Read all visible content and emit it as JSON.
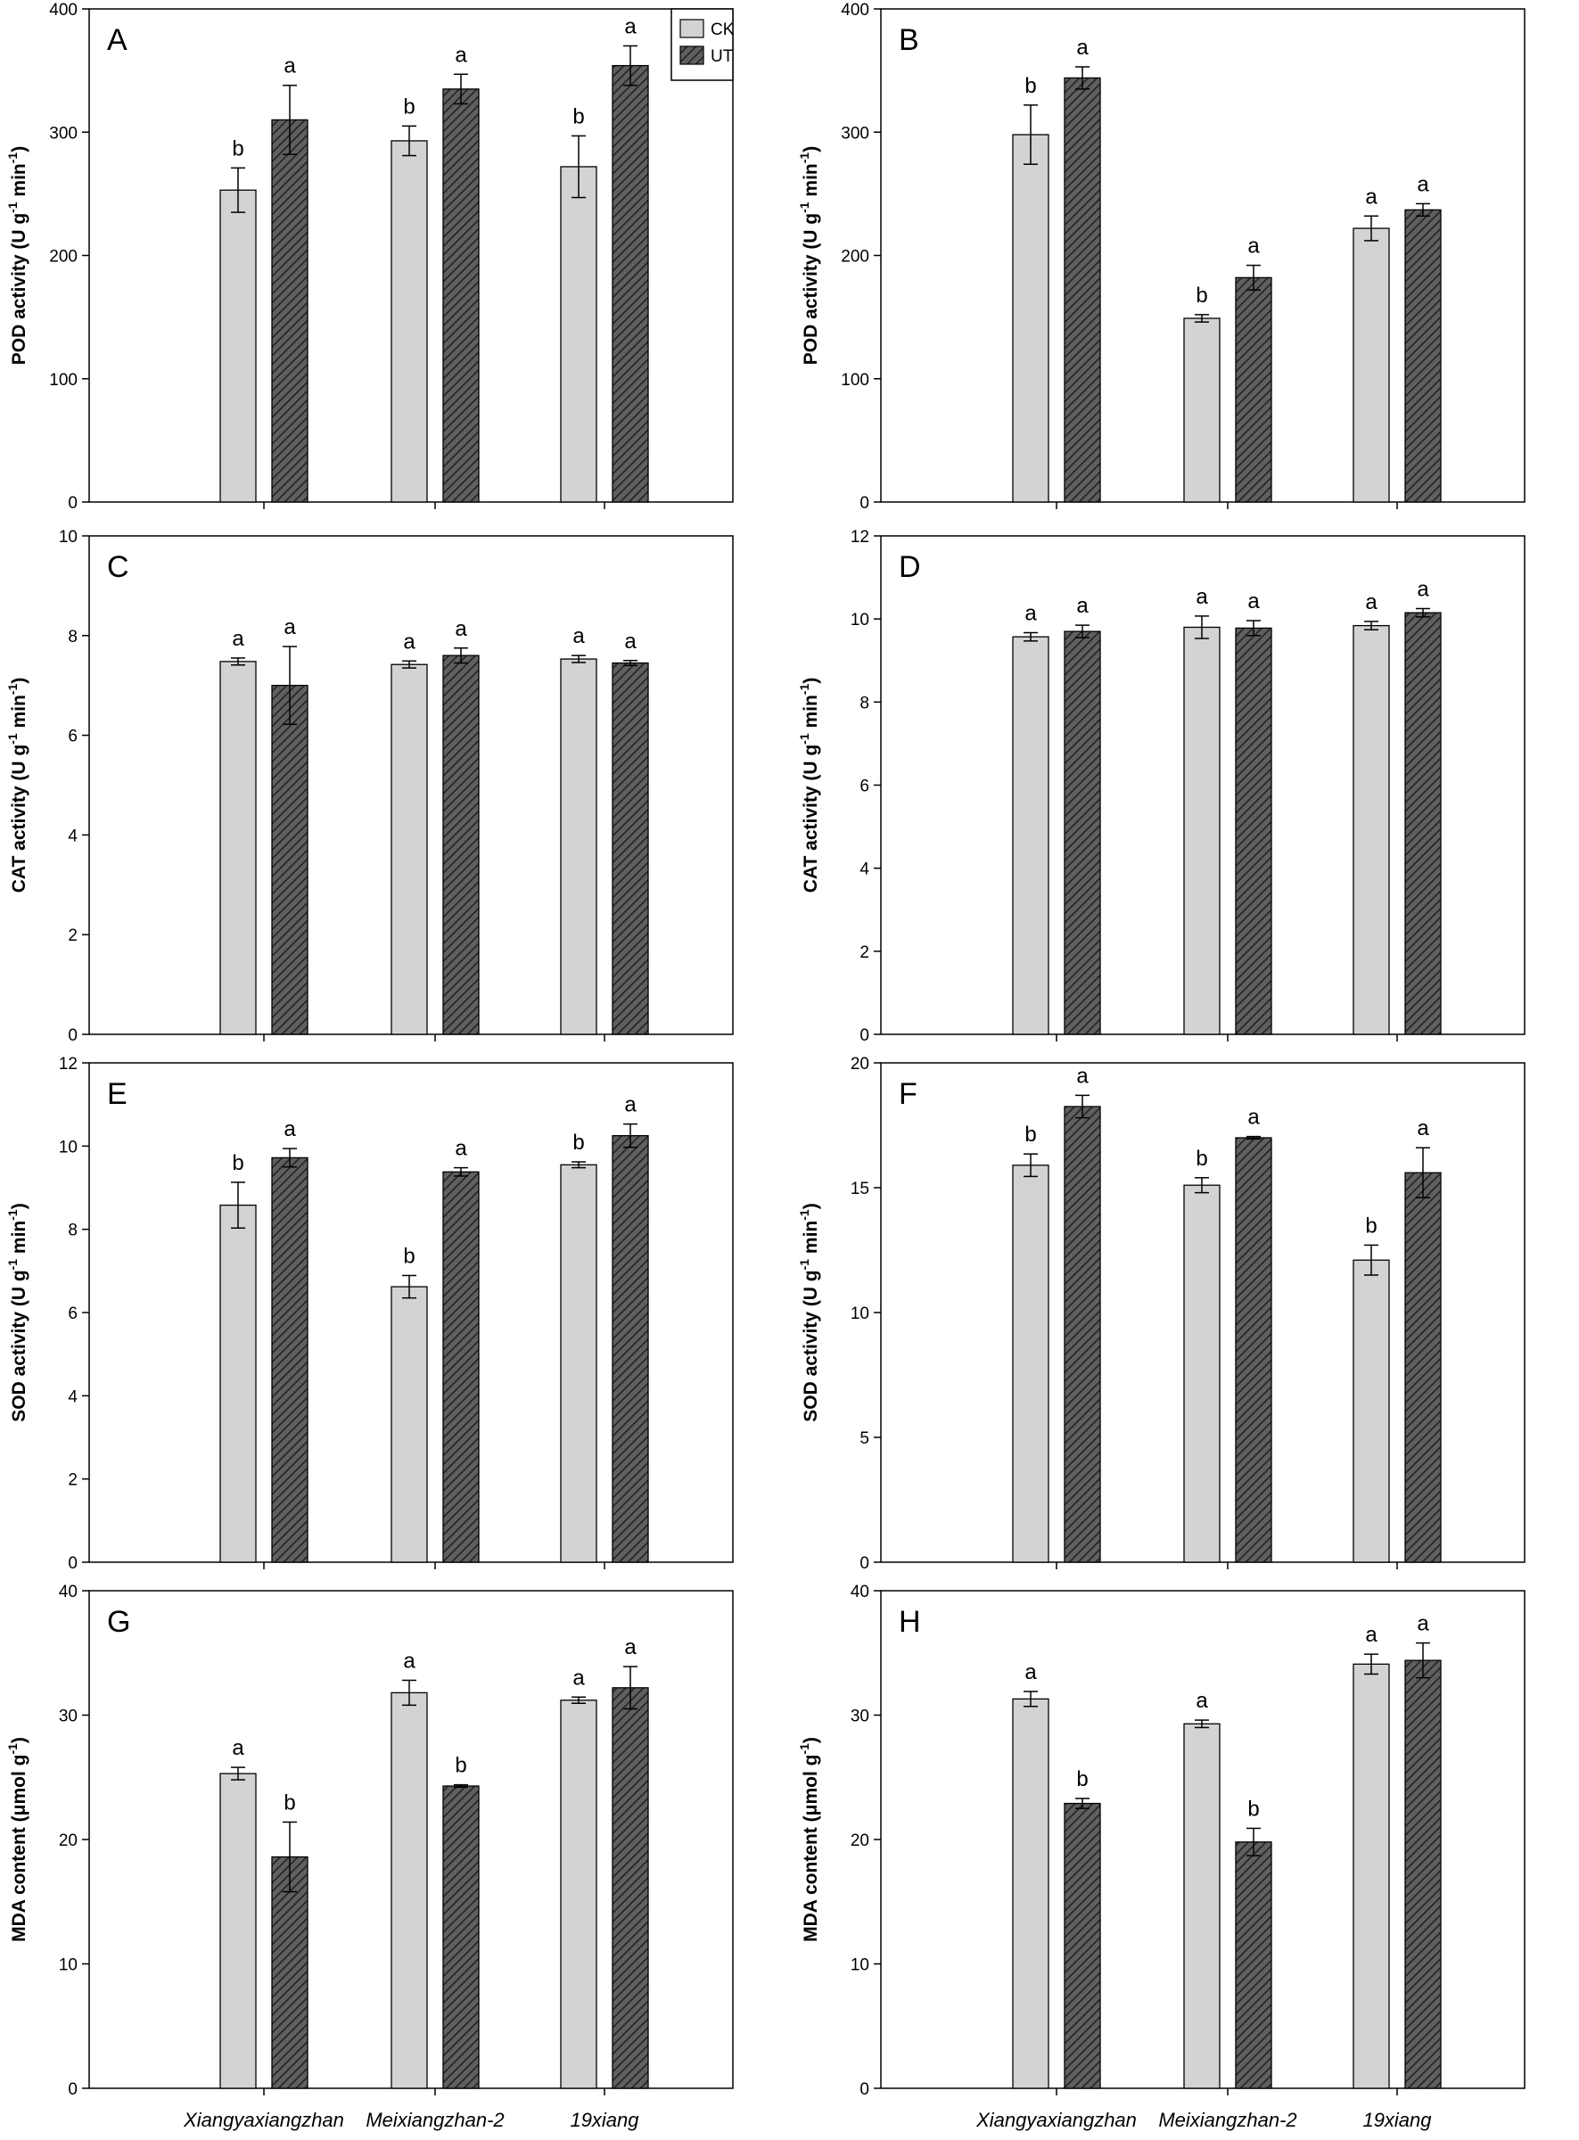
{
  "figure": {
    "categories": [
      "Xiangyaxiangzhan",
      "Meixiangzhan-2",
      "19xiang"
    ],
    "legend": [
      {
        "name": "CK",
        "fill": "#d3d3d3"
      },
      {
        "name": "UT",
        "fill": "hatched"
      }
    ],
    "colors": {
      "ck_fill": "#d3d3d3",
      "ut_fill": "#5f5f5f",
      "ut_hatch": "#2e2e2e",
      "frame": "#000000"
    }
  },
  "chart_data": [
    {
      "id": "A",
      "type": "bar",
      "title": "A",
      "ylabel_main": "POD activity (U g",
      "ylabel_sup1": "-1",
      "ylabel_mid": " min",
      "ylabel_sup2": "-1",
      "ylabel_end": ")",
      "ylim": [
        0,
        400
      ],
      "yticks": [
        "0",
        "100",
        "200",
        "300",
        "400"
      ],
      "categories": [
        "Xiangyaxiangzhan",
        "Meixiangzhan-2",
        "19xiang"
      ],
      "series": [
        {
          "name": "CK",
          "values": [
            253,
            293,
            272
          ],
          "errors": [
            18,
            12,
            25
          ],
          "labels": [
            "b",
            "b",
            "b"
          ]
        },
        {
          "name": "UT",
          "values": [
            310,
            335,
            354
          ],
          "errors": [
            28,
            12,
            16
          ],
          "labels": [
            "a",
            "a",
            "a"
          ]
        }
      ],
      "legend": true
    },
    {
      "id": "B",
      "type": "bar",
      "title": "B",
      "ylabel_main": "POD activity (U g",
      "ylabel_sup1": "-1",
      "ylabel_mid": " min",
      "ylabel_sup2": "-1",
      "ylabel_end": ")",
      "ylim": [
        0,
        400
      ],
      "yticks": [
        "0",
        "100",
        "200",
        "300",
        "400"
      ],
      "categories": [
        "Xiangyaxiangzhan",
        "Meixiangzhan-2",
        "19xiang"
      ],
      "series": [
        {
          "name": "CK",
          "values": [
            298,
            149,
            222
          ],
          "errors": [
            24,
            3,
            10
          ],
          "labels": [
            "b",
            "b",
            "a"
          ]
        },
        {
          "name": "UT",
          "values": [
            344,
            182,
            237
          ],
          "errors": [
            9,
            10,
            5
          ],
          "labels": [
            "a",
            "a",
            "a"
          ]
        }
      ],
      "legend": false
    },
    {
      "id": "C",
      "type": "bar",
      "title": "C",
      "ylabel_main": "CAT activity (U g",
      "ylabel_sup1": "-1",
      "ylabel_mid": " min",
      "ylabel_sup2": "-1",
      "ylabel_end": ")",
      "ylim": [
        0,
        10
      ],
      "yticks": [
        "0",
        "2",
        "4",
        "6",
        "8",
        "10"
      ],
      "categories": [
        "Xiangyaxiangzhan",
        "Meixiangzhan-2",
        "19xiang"
      ],
      "series": [
        {
          "name": "CK",
          "values": [
            7.48,
            7.42,
            7.53
          ],
          "errors": [
            0.07,
            0.07,
            0.07
          ],
          "labels": [
            "a",
            "a",
            "a"
          ]
        },
        {
          "name": "UT",
          "values": [
            7.0,
            7.6,
            7.45
          ],
          "errors": [
            0.78,
            0.15,
            0.05
          ],
          "labels": [
            "a",
            "a",
            "a"
          ]
        }
      ],
      "legend": false
    },
    {
      "id": "D",
      "type": "bar",
      "title": "D",
      "ylabel_main": "CAT activity (U g",
      "ylabel_sup1": "-1",
      "ylabel_mid": " min",
      "ylabel_sup2": "-1",
      "ylabel_end": ")",
      "ylim": [
        0,
        12
      ],
      "yticks": [
        "0",
        "2",
        "4",
        "6",
        "8",
        "10",
        "12"
      ],
      "categories": [
        "Xiangyaxiangzhan",
        "Meixiangzhan-2",
        "19xiang"
      ],
      "series": [
        {
          "name": "CK",
          "values": [
            9.57,
            9.8,
            9.84
          ],
          "errors": [
            0.1,
            0.27,
            0.1
          ],
          "labels": [
            "a",
            "a",
            "a"
          ]
        },
        {
          "name": "UT",
          "values": [
            9.7,
            9.78,
            10.15
          ],
          "errors": [
            0.15,
            0.18,
            0.1
          ],
          "labels": [
            "a",
            "a",
            "a"
          ]
        }
      ],
      "legend": false
    },
    {
      "id": "E",
      "type": "bar",
      "title": "E",
      "ylabel_main": "SOD activity (U g",
      "ylabel_sup1": "-1",
      "ylabel_mid": " min",
      "ylabel_sup2": "-1",
      "ylabel_end": ")",
      "ylim": [
        0,
        12
      ],
      "yticks": [
        "0",
        "2",
        "4",
        "6",
        "8",
        "10",
        "12"
      ],
      "categories": [
        "Xiangyaxiangzhan",
        "Meixiangzhan-2",
        "19xiang"
      ],
      "series": [
        {
          "name": "CK",
          "values": [
            8.58,
            6.62,
            9.55
          ],
          "errors": [
            0.55,
            0.27,
            0.07
          ],
          "labels": [
            "b",
            "b",
            "b"
          ]
        },
        {
          "name": "UT",
          "values": [
            9.72,
            9.38,
            10.25
          ],
          "errors": [
            0.22,
            0.1,
            0.28
          ],
          "labels": [
            "a",
            "a",
            "a"
          ]
        }
      ],
      "legend": false
    },
    {
      "id": "F",
      "type": "bar",
      "title": "F",
      "ylabel_main": "SOD activity (U g",
      "ylabel_sup1": "-1",
      "ylabel_mid": " min",
      "ylabel_sup2": "-1",
      "ylabel_end": ")",
      "ylim": [
        0,
        20
      ],
      "yticks": [
        "0",
        "5",
        "10",
        "15",
        "20"
      ],
      "categories": [
        "Xiangyaxiangzhan",
        "Meixiangzhan-2",
        "19xiang"
      ],
      "series": [
        {
          "name": "CK",
          "values": [
            15.9,
            15.1,
            12.1
          ],
          "errors": [
            0.45,
            0.3,
            0.6
          ],
          "labels": [
            "b",
            "b",
            "b"
          ]
        },
        {
          "name": "UT",
          "values": [
            18.25,
            17.0,
            15.6
          ],
          "errors": [
            0.45,
            0.05,
            1.0
          ],
          "labels": [
            "a",
            "a",
            "a"
          ]
        }
      ],
      "legend": false
    },
    {
      "id": "G",
      "type": "bar",
      "title": "G",
      "ylabel_main": "MDA content (μmol g",
      "ylabel_sup1": "-1",
      "ylabel_mid": "",
      "ylabel_sup2": "",
      "ylabel_end": ")",
      "ylim": [
        0,
        40
      ],
      "yticks": [
        "0",
        "10",
        "20",
        "30",
        "40"
      ],
      "categories": [
        "Xiangyaxiangzhan",
        "Meixiangzhan-2",
        "19xiang"
      ],
      "series": [
        {
          "name": "CK",
          "values": [
            25.3,
            31.8,
            31.2
          ],
          "errors": [
            0.5,
            1.0,
            0.25
          ],
          "labels": [
            "a",
            "a",
            "a"
          ]
        },
        {
          "name": "UT",
          "values": [
            18.6,
            24.3,
            32.2
          ],
          "errors": [
            2.8,
            0.1,
            1.7
          ],
          "labels": [
            "b",
            "b",
            "a"
          ]
        }
      ],
      "legend": false
    },
    {
      "id": "H",
      "type": "bar",
      "title": "H",
      "ylabel_main": "MDA content (μmol g",
      "ylabel_sup1": "-1",
      "ylabel_mid": "",
      "ylabel_sup2": "",
      "ylabel_end": ")",
      "ylim": [
        0,
        40
      ],
      "yticks": [
        "0",
        "10",
        "20",
        "30",
        "40"
      ],
      "categories": [
        "Xiangyaxiangzhan",
        "Meixiangzhan-2",
        "19xiang"
      ],
      "series": [
        {
          "name": "CK",
          "values": [
            31.3,
            29.3,
            34.1
          ],
          "errors": [
            0.6,
            0.3,
            0.8
          ],
          "labels": [
            "a",
            "a",
            "a"
          ]
        },
        {
          "name": "UT",
          "values": [
            22.9,
            19.8,
            34.4
          ],
          "errors": [
            0.4,
            1.1,
            1.4
          ],
          "labels": [
            "b",
            "b",
            "a"
          ]
        }
      ],
      "legend": false
    }
  ]
}
